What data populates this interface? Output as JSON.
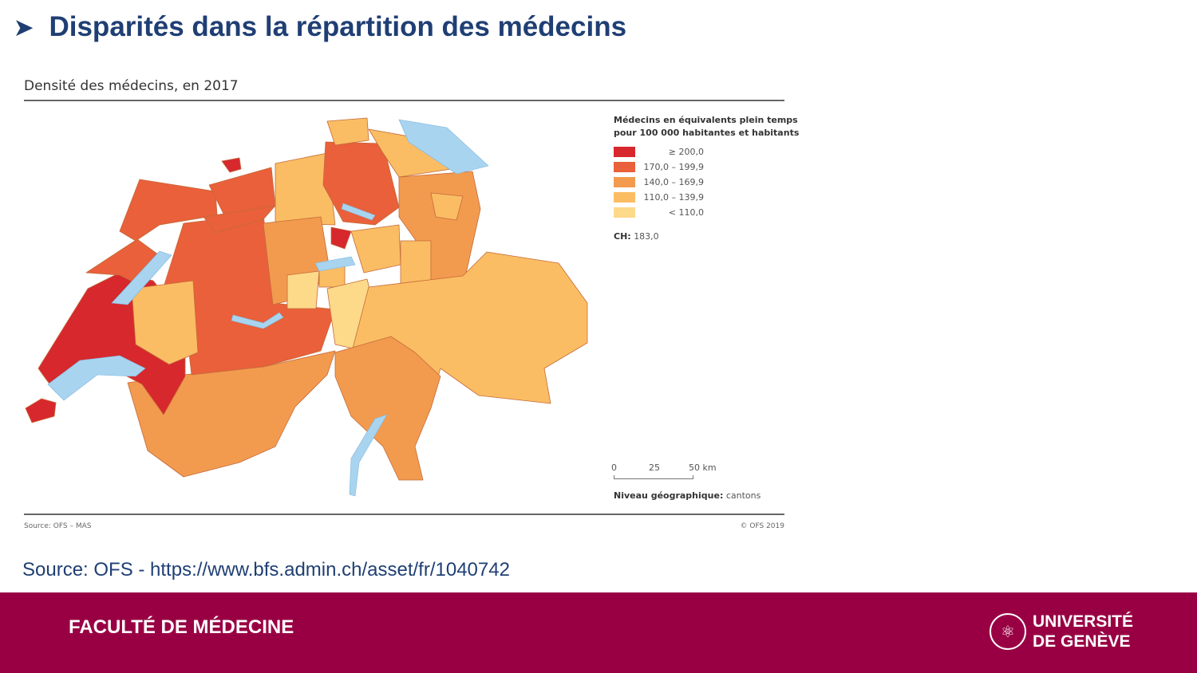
{
  "slide": {
    "title": "Disparités dans la répartition des médecins",
    "bullet_icon": "arrowhead-bullet",
    "source": "Source: OFS - https://www.bfs.admin.ch/asset/fr/1040742"
  },
  "map": {
    "title": "Densité des médecins, en 2017",
    "legend": {
      "title_line1": "Médecins en équivalents plein temps",
      "title_line2": "pour 100 000 habitantes et habitants",
      "classes": [
        {
          "label": "≥ 200,0",
          "color": "#d7282d"
        },
        {
          "label": "170,0 – 199,9",
          "color": "#e9603a"
        },
        {
          "label": "140,0 – 169,9",
          "color": "#f29b4f"
        },
        {
          "label": "110,0 – 139,9",
          "color": "#fbbd63"
        },
        {
          "label": "< 110,0",
          "color": "#fdd98a"
        }
      ]
    },
    "ch_label": "CH:",
    "ch_value": "183,0",
    "scale": {
      "t0": "0",
      "t1": "25",
      "t2": "50 km"
    },
    "niveau_label": "Niveau géographique:",
    "niveau_value": "cantons",
    "source": "Source: OFS – MAS",
    "copyright": "© OFS 2019",
    "lake_color": "#a8d4f0"
  },
  "footer": {
    "faculty": "FACULTÉ DE MÉDECINE",
    "university_line1": "UNIVERSITÉ",
    "university_line2": "DE GENÈVE",
    "color": "#990044"
  }
}
